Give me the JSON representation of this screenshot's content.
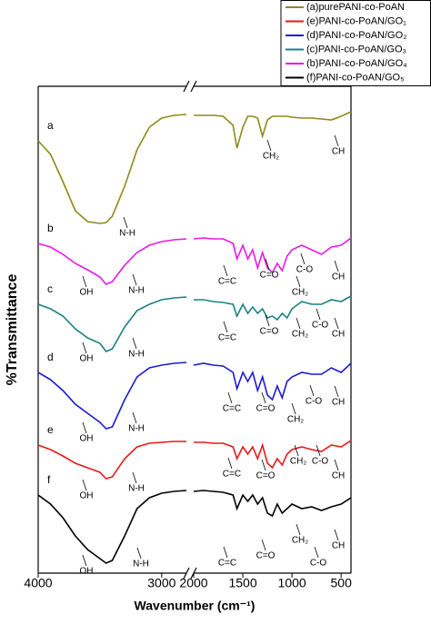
{
  "chart_data": {
    "type": "line",
    "x_label": "Wavenumber (cm⁻¹)",
    "y_label": "%Transmittance",
    "x_segments": [
      {
        "xlim": [
          4000,
          2800
        ],
        "xticks": [
          4000,
          3000
        ]
      },
      {
        "xlim": [
          2000,
          400
        ],
        "xticks": [
          2000,
          1500,
          1000,
          500
        ]
      }
    ],
    "ylim": [
      0,
      536
    ],
    "series": [
      {
        "name": "(a)purePANI-co-PoAN",
        "label": "a",
        "color": "#8b8b1a",
        "x": [
          4000,
          3900,
          3800,
          3700,
          3600,
          3500,
          3450,
          3400,
          3300,
          3200,
          3100,
          3000,
          2900,
          2800,
          null,
          2000,
          1900,
          1800,
          1700,
          1600,
          1560,
          1500,
          1450,
          1400,
          1350,
          1300,
          1250,
          1200,
          1150,
          1100,
          1050,
          1000,
          900,
          800,
          700,
          600,
          500,
          400
        ],
        "values": [
          476,
          461,
          431,
          399,
          387,
          385,
          386,
          393,
          426,
          466,
          491,
          501,
          504,
          505,
          null,
          504,
          504,
          504,
          503,
          493,
          468,
          491,
          503,
          503,
          501,
          481,
          499,
          503,
          503,
          503,
          503,
          502,
          501,
          501,
          500,
          499,
          503,
          508
        ],
        "annotations": [
          {
            "text": "N-H",
            "x": 3278,
            "y": 374
          },
          {
            "text": "CH₂",
            "x": 1214,
            "y": 459
          },
          {
            "text": "CH",
            "x": 529,
            "y": 464
          }
        ]
      },
      {
        "name": "(e)PANI-co-PoAN/GO₁",
        "label": "e",
        "color": "#e31a1c",
        "x": [
          4000,
          3900,
          3800,
          3700,
          3600,
          3500,
          3450,
          3400,
          3300,
          3200,
          3100,
          3000,
          2900,
          2800,
          null,
          2000,
          1900,
          1800,
          1700,
          1600,
          1560,
          1500,
          1450,
          1400,
          1350,
          1300,
          1250,
          1200,
          1150,
          1100,
          1050,
          1000,
          900,
          800,
          700,
          600,
          500,
          400
        ],
        "values": [
          141,
          136,
          129,
          121,
          116,
          111,
          104,
          106,
          126,
          139,
          143,
          144,
          145,
          145,
          null,
          144,
          144,
          143,
          143,
          139,
          126,
          139,
          131,
          139,
          126,
          141,
          121,
          116,
          126,
          119,
          131,
          136,
          139,
          136,
          134,
          141,
          139,
          146
        ],
        "annotations": [
          {
            "text": "OH",
            "x": 3610,
            "y": 85
          },
          {
            "text": "N-H",
            "x": 3205,
            "y": 93
          },
          {
            "text": "C=C",
            "x": 1612,
            "y": 109
          },
          {
            "text": "C=O",
            "x": 1269,
            "y": 107
          },
          {
            "text": "CH₂",
            "x": 936,
            "y": 123
          },
          {
            "text": "C-O",
            "x": 714,
            "y": 123
          },
          {
            "text": "CH",
            "x": 529,
            "y": 107
          }
        ]
      },
      {
        "name": "(d)PANI-co-PoAN/GO₂",
        "label": "d",
        "color": "#1a1ad4",
        "x": [
          4000,
          3900,
          3800,
          3700,
          3600,
          3500,
          3450,
          3400,
          3300,
          3200,
          3100,
          3000,
          2900,
          2800,
          null,
          2000,
          1900,
          1800,
          1700,
          1600,
          1560,
          1500,
          1450,
          1400,
          1350,
          1300,
          1250,
          1200,
          1150,
          1100,
          1050,
          1000,
          900,
          800,
          700,
          600,
          500,
          400
        ],
        "values": [
          221,
          213,
          201,
          186,
          176,
          166,
          159,
          161,
          191,
          216,
          226,
          229,
          231,
          232,
          null,
          229,
          231,
          229,
          228,
          221,
          203,
          221,
          211,
          221,
          201,
          216,
          196,
          191,
          206,
          193,
          211,
          216,
          221,
          219,
          219,
          226,
          221,
          231
        ],
        "annotations": [
          {
            "text": "OH",
            "x": 3610,
            "y": 148
          },
          {
            "text": "N-H",
            "x": 3205,
            "y": 159
          },
          {
            "text": "C=C",
            "x": 1612,
            "y": 181
          },
          {
            "text": "C=O",
            "x": 1269,
            "y": 181
          },
          {
            "text": "CH₂",
            "x": 964,
            "y": 169
          },
          {
            "text": "C-O",
            "x": 779,
            "y": 189
          },
          {
            "text": "CH",
            "x": 529,
            "y": 188
          }
        ]
      },
      {
        "name": "(c)PANI-co-PoAN/GO₃",
        "label": "c",
        "color": "#1b8080",
        "x": [
          4000,
          3900,
          3800,
          3700,
          3600,
          3500,
          3450,
          3400,
          3300,
          3200,
          3100,
          3000,
          2900,
          2800,
          null,
          2000,
          1900,
          1800,
          1700,
          1600,
          1560,
          1500,
          1450,
          1400,
          1350,
          1300,
          1250,
          1200,
          1150,
          1100,
          1050,
          1000,
          900,
          800,
          700,
          600,
          500,
          400
        ],
        "values": [
          296,
          291,
          283,
          269,
          259,
          253,
          244,
          247,
          271,
          289,
          296,
          301,
          303,
          304,
          null,
          301,
          301,
          299,
          298,
          296,
          283,
          296,
          286,
          293,
          286,
          291,
          281,
          283,
          279,
          286,
          281,
          291,
          299,
          296,
          296,
          301,
          299,
          305
        ],
        "annotations": [
          {
            "text": "OH",
            "x": 3610,
            "y": 236
          },
          {
            "text": "N-H",
            "x": 3205,
            "y": 241
          },
          {
            "text": "C=C",
            "x": 1658,
            "y": 259
          },
          {
            "text": "C=O",
            "x": 1232,
            "y": 266
          },
          {
            "text": "CH₂",
            "x": 918,
            "y": 263
          },
          {
            "text": "C-O",
            "x": 714,
            "y": 273
          },
          {
            "text": "CH",
            "x": 529,
            "y": 263
          }
        ]
      },
      {
        "name": "(b)PANI-co-PoAN/GO₄",
        "label": "b",
        "color": "#e619e6",
        "x": [
          4000,
          3900,
          3800,
          3700,
          3600,
          3500,
          3450,
          3400,
          3300,
          3200,
          3100,
          3000,
          2900,
          2800,
          null,
          2000,
          1900,
          1800,
          1700,
          1600,
          1560,
          1500,
          1450,
          1400,
          1350,
          1300,
          1250,
          1200,
          1150,
          1100,
          1050,
          1000,
          900,
          800,
          700,
          600,
          500,
          400
        ],
        "values": [
          363,
          359,
          351,
          341,
          334,
          326,
          318,
          321,
          339,
          353,
          361,
          365,
          367,
          368,
          null,
          368,
          369,
          368,
          368,
          363,
          346,
          361,
          346,
          356,
          336,
          353,
          336,
          331,
          341,
          333,
          349,
          356,
          361,
          356,
          351,
          359,
          361,
          369
        ],
        "annotations": [
          {
            "text": "OH",
            "x": 3610,
            "y": 309
          },
          {
            "text": "N-H",
            "x": 3205,
            "y": 311
          },
          {
            "text": "C=C",
            "x": 1658,
            "y": 321
          },
          {
            "text": "C=O",
            "x": 1232,
            "y": 328
          },
          {
            "text": "CH₂",
            "x": 918,
            "y": 309
          },
          {
            "text": "C-O",
            "x": 872,
            "y": 334
          },
          {
            "text": "CH",
            "x": 529,
            "y": 326
          }
        ]
      },
      {
        "name": "(f)PANI-co-PoAN/GO₅",
        "label": "f",
        "color": "#000000",
        "x": [
          4000,
          3900,
          3800,
          3700,
          3600,
          3500,
          3450,
          3400,
          3300,
          3200,
          3100,
          3000,
          2900,
          2800,
          null,
          2000,
          1900,
          1800,
          1700,
          1600,
          1560,
          1500,
          1450,
          1400,
          1350,
          1300,
          1250,
          1200,
          1150,
          1100,
          1050,
          1000,
          900,
          800,
          700,
          600,
          500,
          400
        ],
        "values": [
          86,
          76,
          61,
          41,
          26,
          16,
          11,
          14,
          41,
          71,
          83,
          88,
          90,
          91,
          null,
          90,
          91,
          90,
          89,
          86,
          71,
          86,
          79,
          86,
          76,
          83,
          66,
          63,
          76,
          66,
          71,
          76,
          71,
          73,
          69,
          73,
          76,
          83
        ],
        "annotations": [
          {
            "text": "OH",
            "x": 3610,
            "y": 2
          },
          {
            "text": "N-H",
            "x": 3168,
            "y": 10
          },
          {
            "text": "C=C",
            "x": 1658,
            "y": 11
          },
          {
            "text": "C=O",
            "x": 1269,
            "y": 19
          },
          {
            "text": "CH₂",
            "x": 918,
            "y": 36
          },
          {
            "text": "C-O",
            "x": 733,
            "y": 11
          },
          {
            "text": "CH",
            "x": 529,
            "y": 30
          }
        ]
      }
    ]
  }
}
